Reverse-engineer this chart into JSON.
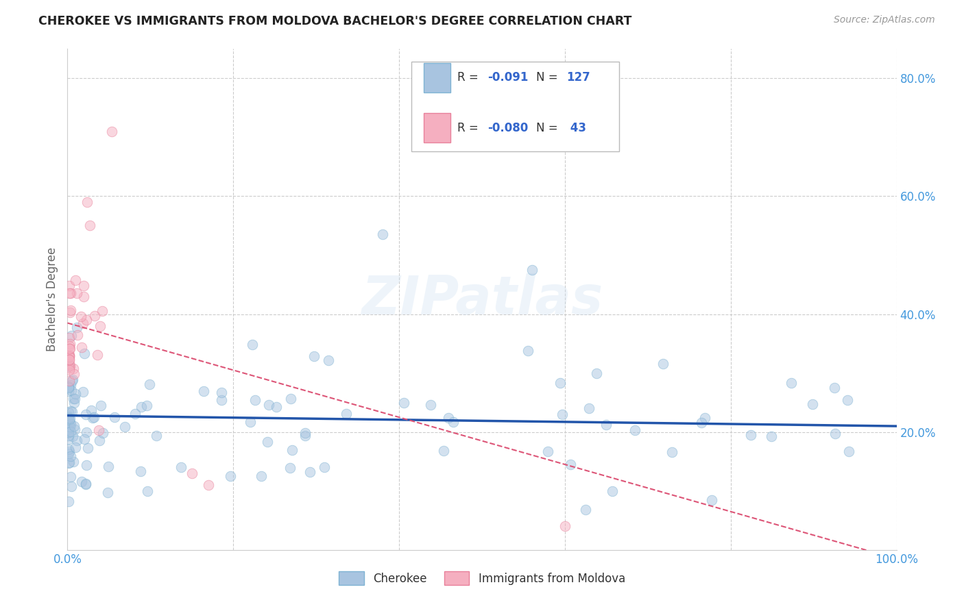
{
  "title": "CHEROKEE VS IMMIGRANTS FROM MOLDOVA BACHELOR'S DEGREE CORRELATION CHART",
  "source": "Source: ZipAtlas.com",
  "ylabel": "Bachelor's Degree",
  "watermark": "ZIPatlas",
  "xlim": [
    0.0,
    1.0
  ],
  "ylim": [
    0.0,
    0.85
  ],
  "cherokee_color": "#a8c4e0",
  "cherokee_edge_color": "#7fb3d3",
  "moldova_color": "#f5afc0",
  "moldova_edge_color": "#e8809a",
  "trend_cherokee_color": "#2255aa",
  "trend_moldova_color": "#dd5577",
  "R_cherokee": -0.091,
  "N_cherokee": 127,
  "R_moldova": -0.08,
  "N_moldova": 43,
  "legend_cherokee_label": "Cherokee",
  "legend_moldova_label": "Immigrants from Moldova",
  "background_color": "#ffffff",
  "grid_color": "#cccccc",
  "title_color": "#222222",
  "axis_label_color": "#666666",
  "tick_color": "#4499dd",
  "marker_size": 110,
  "marker_alpha": 0.5,
  "trend_lw_cherokee": 2.5,
  "trend_lw_moldova": 1.5,
  "blue_label": "#3366cc"
}
